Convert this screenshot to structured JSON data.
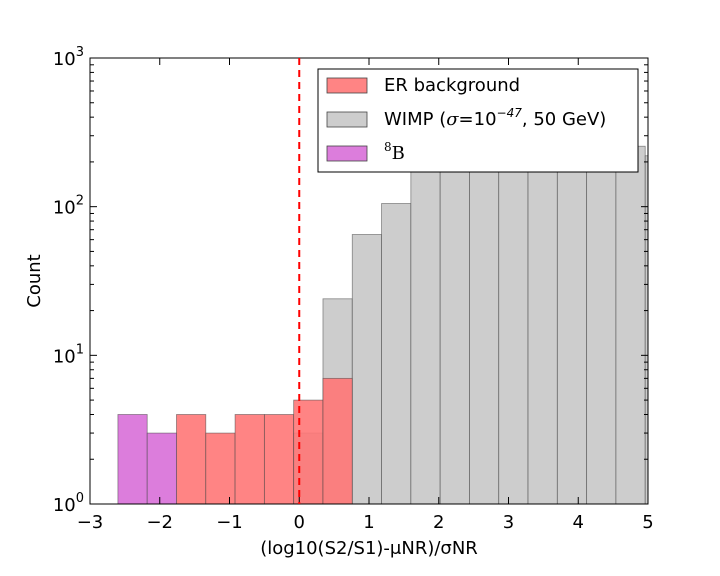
{
  "chart_data": {
    "type": "bar",
    "xlabel": "(log10(S2/S1)-μNR)/σNR",
    "ylabel": "Count",
    "xlim": [
      -3,
      5
    ],
    "ylim": [
      1,
      1000
    ],
    "yscale": "log",
    "grid": false,
    "legend_position": "top-right",
    "xticks": [
      "−3",
      "−2",
      "−1",
      "0",
      "1",
      "2",
      "3",
      "4",
      "5"
    ],
    "yticks": [
      {
        "base": "10",
        "exp": "0"
      },
      {
        "base": "10",
        "exp": "1"
      },
      {
        "base": "10",
        "exp": "2"
      },
      {
        "base": "10",
        "exp": "3"
      }
    ],
    "bin_edges": [
      -2.6,
      -2.18,
      -1.76,
      -1.34,
      -0.92,
      -0.5,
      -0.08,
      0.34,
      0.76,
      1.18,
      1.6,
      2.02,
      2.44,
      2.86,
      3.28,
      3.7,
      4.12,
      4.54,
      4.96,
      5.38
    ],
    "series": [
      {
        "name": "WIMP (σ=10⁻⁴⁷, 50 GeV)",
        "label_parts": [
          "WIMP (",
          "σ",
          "=10",
          "−47",
          ", 50 GeV)"
        ],
        "color": "#c4c4c4",
        "opacity": 0.85,
        "values": [
          0,
          0,
          0,
          0,
          0,
          0,
          3,
          24,
          65,
          105,
          195,
          300,
          275,
          285,
          290,
          270,
          270,
          255,
          220
        ]
      },
      {
        "name": "ER background",
        "label_parts": [
          "ER background"
        ],
        "color": "#ff7777",
        "opacity": 0.9,
        "values": [
          0,
          0,
          4,
          3,
          4,
          4,
          5,
          7,
          0,
          0,
          0,
          0,
          0,
          0,
          0,
          0,
          0,
          0,
          0
        ]
      },
      {
        "name": "8B",
        "label_parts": [
          "8",
          "B"
        ],
        "color": "#dc7ddc",
        "opacity": 1.0,
        "values": [
          4,
          3,
          0,
          0,
          0,
          0,
          0,
          0,
          0,
          0,
          0,
          0,
          0,
          0,
          0,
          0,
          0,
          0,
          0
        ]
      }
    ],
    "legend_order": [
      1,
      0,
      2
    ],
    "threshold_line": {
      "x": 0,
      "color": "#ff0000",
      "style": "dashed"
    }
  }
}
